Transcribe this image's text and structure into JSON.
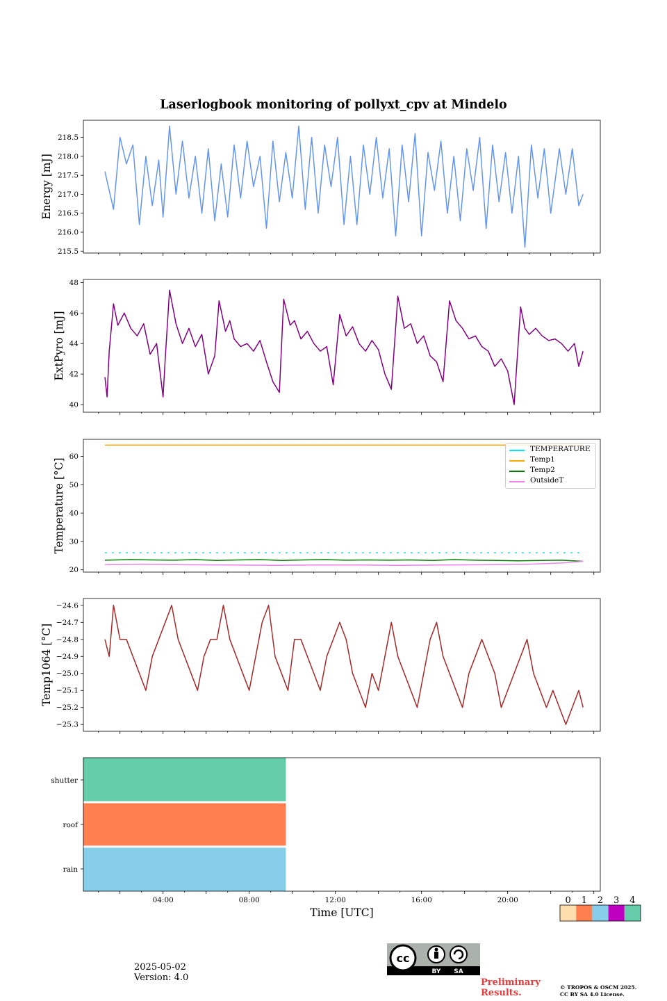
{
  "title": "Laserlogbook monitoring of pollyxt_cpv at Mindelo",
  "footer": {
    "date": "2025-05-02",
    "version": "Version: 4.0",
    "preliminary_line1": "Preliminary",
    "preliminary_line2": "Results.",
    "copyright_line1": "© TROPOS & OSCM 2025.",
    "copyright_line2": "CC BY SA 4.0 License.",
    "license_badge": {
      "cc": "cc",
      "by": "BY",
      "sa": "SA"
    }
  },
  "chart_data": [
    {
      "type": "line",
      "ylabel": "Energy [mJ]",
      "ylim": [
        215.45,
        218.95
      ],
      "yticks": [
        215.5,
        216.0,
        216.5,
        217.0,
        217.5,
        218.0,
        218.5
      ],
      "xlim_hours": [
        0.3,
        24.3
      ],
      "series": [
        {
          "color": "#6495ed",
          "x": [
            1.3,
            1.7,
            2.0,
            2.3,
            2.6,
            2.9,
            3.2,
            3.5,
            3.8,
            4.0,
            4.3,
            4.6,
            4.9,
            5.2,
            5.5,
            5.8,
            6.1,
            6.4,
            6.7,
            7.0,
            7.3,
            7.6,
            7.9,
            8.2,
            8.5,
            8.8,
            9.1,
            9.4,
            9.7,
            10.0,
            10.3,
            10.6,
            10.9,
            11.2,
            11.5,
            11.8,
            12.1,
            12.4,
            12.7,
            13.0,
            13.3,
            13.6,
            13.9,
            14.2,
            14.5,
            14.8,
            15.1,
            15.4,
            15.7,
            16.0,
            16.3,
            16.6,
            16.9,
            17.2,
            17.5,
            17.8,
            18.1,
            18.4,
            18.7,
            19.0,
            19.3,
            19.6,
            19.9,
            20.2,
            20.5,
            20.8,
            21.1,
            21.4,
            21.7,
            22.0,
            22.4,
            22.7,
            23.0,
            23.3,
            23.5
          ],
          "y": [
            217.6,
            216.6,
            218.5,
            217.8,
            218.3,
            216.2,
            218.0,
            216.7,
            217.9,
            216.4,
            218.8,
            217.0,
            218.4,
            216.9,
            218.0,
            216.5,
            218.2,
            216.3,
            217.8,
            216.4,
            218.3,
            216.9,
            218.4,
            217.2,
            218.0,
            216.1,
            218.4,
            216.8,
            218.1,
            216.9,
            218.8,
            216.6,
            218.5,
            216.5,
            218.3,
            217.2,
            218.5,
            216.2,
            218.0,
            216.2,
            218.3,
            217.0,
            218.5,
            216.9,
            218.2,
            215.9,
            218.3,
            216.8,
            218.6,
            215.9,
            218.1,
            217.1,
            218.4,
            216.5,
            218.0,
            216.3,
            218.2,
            217.1,
            218.5,
            216.1,
            218.3,
            216.8,
            218.1,
            216.5,
            218.0,
            215.6,
            218.3,
            216.9,
            218.2,
            216.5,
            218.2,
            217.0,
            218.2,
            216.7,
            217.0
          ]
        }
      ]
    },
    {
      "type": "line",
      "ylabel": "ExtPyro [mJ]",
      "ylim": [
        39.5,
        48.2
      ],
      "yticks": [
        40,
        42,
        44,
        46,
        48
      ],
      "xlim_hours": [
        0.3,
        24.3
      ],
      "series": [
        {
          "color": "#800080",
          "x": [
            1.3,
            1.4,
            1.5,
            1.7,
            1.9,
            2.2,
            2.5,
            2.8,
            3.1,
            3.4,
            3.7,
            4.0,
            4.1,
            4.3,
            4.6,
            4.9,
            5.2,
            5.5,
            5.8,
            6.1,
            6.4,
            6.6,
            6.9,
            7.1,
            7.3,
            7.6,
            7.9,
            8.2,
            8.5,
            8.8,
            9.1,
            9.4,
            9.6,
            9.9,
            10.1,
            10.4,
            10.7,
            11.0,
            11.3,
            11.6,
            11.9,
            12.2,
            12.5,
            12.8,
            13.1,
            13.4,
            13.7,
            14.0,
            14.3,
            14.6,
            14.9,
            15.2,
            15.5,
            15.8,
            16.1,
            16.4,
            16.7,
            17.0,
            17.3,
            17.6,
            17.9,
            18.2,
            18.5,
            18.8,
            19.1,
            19.4,
            19.7,
            20.0,
            20.3,
            20.6,
            20.8,
            21.0,
            21.3,
            21.6,
            21.9,
            22.2,
            22.5,
            22.8,
            23.1,
            23.3,
            23.5
          ],
          "y": [
            41.8,
            40.5,
            43.5,
            46.6,
            45.2,
            46.0,
            45.0,
            44.5,
            45.3,
            43.3,
            44.0,
            40.5,
            43.0,
            47.5,
            45.3,
            44.0,
            45.0,
            43.8,
            44.6,
            42.0,
            43.2,
            46.8,
            44.8,
            45.5,
            44.3,
            43.8,
            44.0,
            43.5,
            44.2,
            42.8,
            41.5,
            40.8,
            46.9,
            45.2,
            45.5,
            44.3,
            44.8,
            44.0,
            43.5,
            43.8,
            41.3,
            45.9,
            44.5,
            45.1,
            44.0,
            43.5,
            44.2,
            43.6,
            42.0,
            41.0,
            47.1,
            45.0,
            45.3,
            44.0,
            44.5,
            43.2,
            42.8,
            41.5,
            46.8,
            45.5,
            45.0,
            44.3,
            44.5,
            43.8,
            43.5,
            42.5,
            43.0,
            42.2,
            40.0,
            46.4,
            45.0,
            44.6,
            45.0,
            44.5,
            44.2,
            44.3,
            44.0,
            43.5,
            44.0,
            42.5,
            43.5
          ]
        }
      ]
    },
    {
      "type": "line",
      "ylabel": "Temperature [°C]",
      "ylim": [
        19.2,
        66.0
      ],
      "yticks": [
        20,
        30,
        40,
        50,
        60
      ],
      "xlim_hours": [
        0.3,
        24.3
      ],
      "legend_position": "top-right",
      "series": [
        {
          "name": "TEMPERATURE",
          "color": "#00e5ee",
          "style": "dashed",
          "x": [
            1.3,
            23.5
          ],
          "y": [
            26.0,
            26.0
          ]
        },
        {
          "name": "Temp1",
          "color": "#ffa500",
          "x": [
            1.3,
            23.5
          ],
          "y": [
            64.0,
            64.0
          ]
        },
        {
          "name": "Temp2",
          "color": "#008000",
          "x": [
            1.3,
            2.5,
            3.5,
            4.5,
            5.5,
            6.5,
            7.5,
            8.5,
            9.5,
            10.5,
            11.5,
            12.5,
            13.5,
            14.5,
            15.5,
            16.5,
            17.5,
            18.5,
            19.5,
            20.5,
            21.5,
            22.5,
            23.5
          ],
          "y": [
            23.4,
            23.6,
            23.5,
            23.4,
            23.6,
            23.3,
            23.5,
            23.6,
            23.3,
            23.5,
            23.6,
            23.4,
            23.5,
            23.4,
            23.5,
            23.3,
            23.6,
            23.4,
            23.3,
            23.2,
            23.3,
            23.4,
            23.0
          ]
        },
        {
          "name": "OutsideT",
          "color": "#ee82ee",
          "x": [
            1.3,
            3.0,
            5.0,
            7.0,
            9.0,
            11.0,
            13.0,
            15.0,
            17.0,
            19.0,
            21.0,
            22.5,
            23.5
          ],
          "y": [
            21.8,
            22.0,
            21.8,
            21.7,
            21.6,
            21.7,
            21.7,
            21.6,
            21.7,
            21.8,
            22.0,
            22.4,
            23.0
          ]
        }
      ]
    },
    {
      "type": "line",
      "ylabel": "Temp1064 [°C]",
      "ylim": [
        -25.34,
        -24.56
      ],
      "yticks": [
        -24.6,
        -24.7,
        -24.8,
        -24.9,
        -25.0,
        -25.1,
        -25.2,
        -25.3
      ],
      "xlim_hours": [
        0.3,
        24.3
      ],
      "series": [
        {
          "color": "#a52a2a",
          "x": [
            1.3,
            1.5,
            1.7,
            2.0,
            2.3,
            2.6,
            2.9,
            3.2,
            3.5,
            3.8,
            4.1,
            4.4,
            4.7,
            5.0,
            5.3,
            5.6,
            5.9,
            6.2,
            6.5,
            6.8,
            7.1,
            7.4,
            7.7,
            8.0,
            8.3,
            8.6,
            8.9,
            9.2,
            9.5,
            9.8,
            10.1,
            10.4,
            10.7,
            11.0,
            11.3,
            11.6,
            11.9,
            12.2,
            12.5,
            12.8,
            13.1,
            13.4,
            13.7,
            14.0,
            14.3,
            14.6,
            14.9,
            15.2,
            15.5,
            15.8,
            16.1,
            16.4,
            16.7,
            17.0,
            17.3,
            17.6,
            17.9,
            18.2,
            18.5,
            18.8,
            19.1,
            19.4,
            19.7,
            20.0,
            20.3,
            20.6,
            20.9,
            21.2,
            21.5,
            21.8,
            22.1,
            22.4,
            22.7,
            23.0,
            23.3,
            23.5
          ],
          "y": [
            -24.8,
            -24.9,
            -24.6,
            -24.8,
            -24.8,
            -24.9,
            -25.0,
            -25.1,
            -24.9,
            -24.8,
            -24.7,
            -24.6,
            -24.8,
            -24.9,
            -25.0,
            -25.1,
            -24.9,
            -24.8,
            -24.8,
            -24.6,
            -24.8,
            -24.9,
            -25.0,
            -25.1,
            -24.9,
            -24.7,
            -24.6,
            -24.9,
            -25.0,
            -25.1,
            -24.8,
            -24.8,
            -24.9,
            -25.0,
            -25.1,
            -24.9,
            -24.8,
            -24.7,
            -24.8,
            -25.0,
            -25.1,
            -25.2,
            -25.0,
            -25.1,
            -24.9,
            -24.7,
            -24.9,
            -25.0,
            -25.1,
            -25.2,
            -25.0,
            -24.8,
            -24.7,
            -24.9,
            -25.0,
            -25.1,
            -25.2,
            -25.0,
            -24.9,
            -24.8,
            -24.9,
            -25.0,
            -25.2,
            -25.1,
            -25.0,
            -24.9,
            -24.8,
            -25.0,
            -25.1,
            -25.2,
            -25.1,
            -25.2,
            -25.3,
            -25.2,
            -25.1,
            -25.2
          ]
        }
      ]
    },
    {
      "type": "bar",
      "orientation": "horizontal-status",
      "categories": [
        "shutter",
        "roof",
        "rain"
      ],
      "xlabel": "Time [UTC]",
      "xlim_hours": [
        0.3,
        24.3
      ],
      "xtick_hours": [
        4,
        8,
        12,
        16,
        20
      ],
      "xtick_labels": [
        "04:00",
        "08:00",
        "12:00",
        "16:00",
        "20:00"
      ],
      "segments": [
        {
          "category": "shutter",
          "start": 0.3,
          "end": 9.7,
          "state": 4
        },
        {
          "category": "roof",
          "start": 0.3,
          "end": 9.7,
          "state": 1
        },
        {
          "category": "rain",
          "start": 0.3,
          "end": 9.7,
          "state": 2
        }
      ],
      "colorbar": {
        "ticks": [
          "0",
          "1",
          "2",
          "3",
          "4"
        ],
        "colors": [
          "#ffdead",
          "#ff7f50",
          "#87ceeb",
          "#c000c0",
          "#66cdaa"
        ]
      }
    }
  ]
}
